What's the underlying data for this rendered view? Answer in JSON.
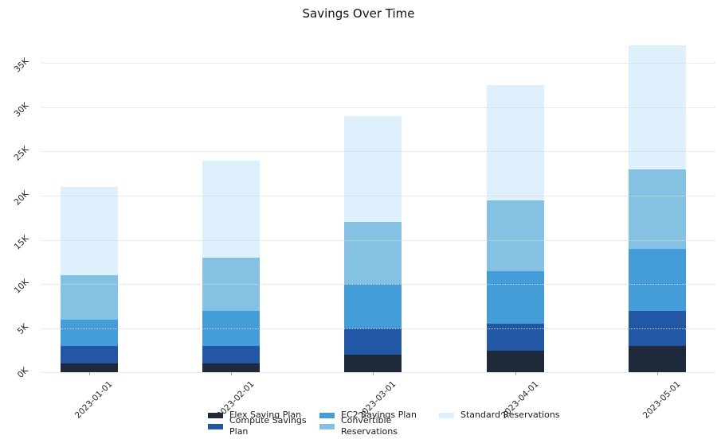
{
  "title": "Savings Over Time",
  "chart_data": {
    "type": "bar",
    "stacked": true,
    "title": "Savings Over Time",
    "categories": [
      "2023-01-01",
      "2023-02-01",
      "2023-03-01",
      "2023-04-01",
      "2023-05-01"
    ],
    "series": [
      {
        "name": "Flex Saving Plan",
        "color": "#1e2a3a",
        "values": [
          1000,
          1000,
          2000,
          2500,
          3000
        ]
      },
      {
        "name": "Compute Savings Plan",
        "color": "#2257a5",
        "values": [
          2000,
          2000,
          3000,
          3000,
          4000
        ]
      },
      {
        "name": "EC2 Savings Plan",
        "color": "#449cd8",
        "values": [
          3000,
          4000,
          5000,
          6000,
          7000
        ]
      },
      {
        "name": "Convertible Reservations",
        "color": "#85c1e3",
        "values": [
          5000,
          6000,
          7000,
          8000,
          9000
        ]
      },
      {
        "name": "Standard Reservations",
        "color": "#def0fb",
        "values": [
          10000,
          11000,
          12000,
          13000,
          14000
        ]
      }
    ],
    "totals": [
      21000,
      24000,
      29000,
      32500,
      37000
    ],
    "ylim": [
      0,
      37600
    ],
    "yticks": [
      0,
      5000,
      10000,
      15000,
      20000,
      25000,
      30000,
      35000
    ],
    "ytick_labels": [
      "0K",
      "5K",
      "10K",
      "15K",
      "20K",
      "25K",
      "30K",
      "35K"
    ],
    "grid": "horizontal dotted, drawn over bars",
    "legend_position": "bottom",
    "tick_label_rotation_deg": 45,
    "colors": {
      "grid": "#d8d8d8",
      "axis_tick": "#a8a8a8",
      "tick_text": "#262626",
      "background": "#ffffff"
    }
  }
}
